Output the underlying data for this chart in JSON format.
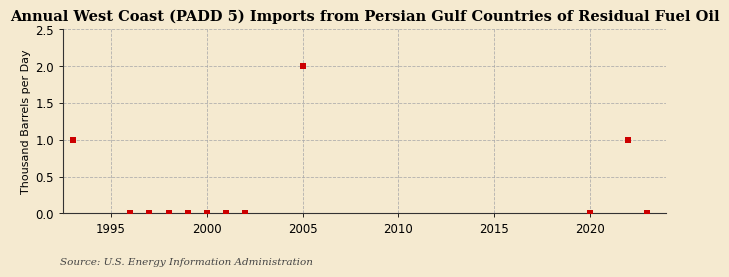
{
  "title": "Annual West Coast (PADD 5) Imports from Persian Gulf Countries of Residual Fuel Oil",
  "ylabel": "Thousand Barrels per Day",
  "source": "Source: U.S. Energy Information Administration",
  "background_color": "#f5ead0",
  "plot_bg_color": "#f5ead0",
  "xlim": [
    1992.5,
    2024
  ],
  "ylim": [
    0.0,
    2.5
  ],
  "yticks": [
    0.0,
    0.5,
    1.0,
    1.5,
    2.0,
    2.5
  ],
  "xticks": [
    1995,
    2000,
    2005,
    2010,
    2015,
    2020
  ],
  "data_x": [
    1993,
    1996,
    1997,
    1998,
    1999,
    2000,
    2001,
    2002,
    2005,
    2020,
    2022,
    2023
  ],
  "data_y": [
    1.0,
    0.0,
    0.0,
    0.0,
    0.0,
    0.0,
    0.0,
    0.0,
    2.0,
    0.0,
    1.0,
    0.0
  ],
  "marker_color": "#cc0000",
  "marker_size": 18,
  "title_fontsize": 10.5,
  "axis_fontsize": 8.5,
  "label_fontsize": 8,
  "source_fontsize": 7.5,
  "grid_color": "#aaaaaa",
  "grid_linestyle": "--",
  "grid_linewidth": 0.6
}
